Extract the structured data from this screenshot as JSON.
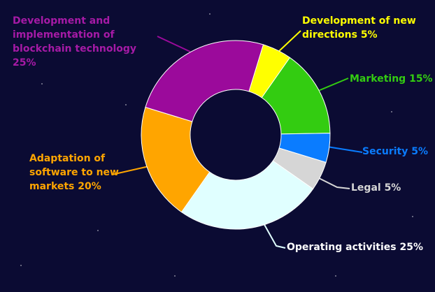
{
  "chart_data": {
    "type": "donut",
    "categories": [
      "Development of new directions",
      "Marketing",
      "Security",
      "Legal",
      "Operating activities",
      "Adaptation of software to new markets",
      "Development and implementation of blockchain technology"
    ],
    "values": [
      5,
      15,
      5,
      5,
      25,
      20,
      25
    ],
    "value_labels": [
      "5%",
      "15%",
      "5%",
      "5%",
      "25%",
      "20%",
      "25%"
    ],
    "colors": [
      "#ffff00",
      "#33cc11",
      "#0a7cff",
      "#d6d6d6",
      "#e0ffff",
      "#ffa500",
      "#9b0a9b"
    ]
  }
}
